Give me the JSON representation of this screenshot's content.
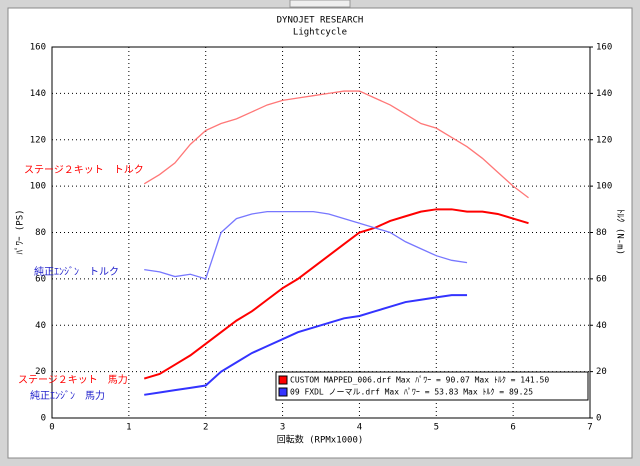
{
  "chart_data": {
    "type": "line",
    "title": "DYNOJET  RESEARCH",
    "subtitle": "Lightcycle",
    "xlabel": "回転数 (RPMx1000)",
    "ylabel": "ﾊﾟﾜｰ (PS)",
    "y2label": "ﾄﾙｸ (N-m)",
    "x": [
      1.2,
      1.4,
      1.6,
      1.8,
      2.0,
      2.2,
      2.4,
      2.6,
      2.8,
      3.0,
      3.2,
      3.4,
      3.6,
      3.8,
      4.0,
      4.2,
      4.4,
      4.6,
      4.8,
      5.0,
      5.2,
      5.4,
      5.6,
      5.8,
      6.0,
      6.2
    ],
    "xlim": [
      0,
      7
    ],
    "xticks": [
      0,
      1,
      2,
      3,
      4,
      5,
      6,
      7
    ],
    "ylim": [
      0,
      160
    ],
    "yticks": [
      0,
      20,
      40,
      60,
      80,
      100,
      120,
      140,
      160
    ],
    "y2lim": [
      0,
      160
    ],
    "y2ticks": [
      0,
      20,
      40,
      60,
      80,
      100,
      120,
      140,
      160
    ],
    "grid": true,
    "series": [
      {
        "name": "CUSTOM MAPPED_006.drf Max ﾊﾟﾜｰ = 90.07   Max ﾄﾙｸ = 141.50",
        "color": "#ff0000",
        "values": [
          17,
          19,
          23,
          27,
          32,
          37,
          42,
          46,
          51,
          56,
          60,
          65,
          70,
          75,
          80,
          82,
          85,
          87,
          89,
          90,
          90,
          89,
          89,
          88,
          86,
          84
        ]
      },
      {
        "name": "09 FXDL ノーマル.drf Max ﾊﾟﾜｰ = 53.83   Max ﾄﾙｸ = 89.25",
        "color": "#3333ff",
        "values": [
          10,
          11,
          12,
          13,
          14,
          20,
          24,
          28,
          31,
          34,
          37,
          39,
          41,
          43,
          44,
          46,
          48,
          50,
          51,
          52,
          53,
          53,
          null,
          null,
          null,
          null
        ]
      },
      {
        "color": "#ff7777",
        "axis": "y2",
        "values": [
          101,
          105,
          110,
          118,
          124,
          127,
          129,
          132,
          135,
          137,
          138,
          139,
          140,
          141,
          141,
          138,
          135,
          131,
          127,
          125,
          121,
          117,
          112,
          106,
          100,
          95
        ]
      },
      {
        "color": "#7777ff",
        "axis": "y2",
        "values": [
          64,
          63,
          61,
          62,
          60,
          80,
          86,
          88,
          89,
          89,
          89,
          89,
          88,
          86,
          84,
          82,
          80,
          76,
          73,
          70,
          68,
          67,
          null,
          null,
          null,
          null
        ]
      }
    ],
    "annotations": [
      "ステージ２キット　トルク",
      "純正ｴﾝｼﾞﾝ　トルク",
      "ステージ２キット　馬力",
      "純正ｴﾝｼﾞﾝ　馬力"
    ]
  }
}
